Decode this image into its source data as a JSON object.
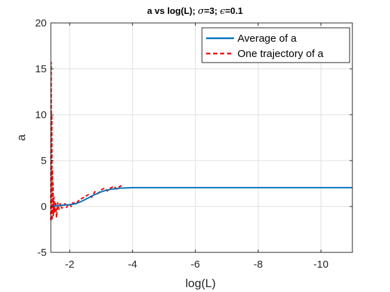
{
  "chart_data": {
    "type": "line",
    "title_parts": [
      "a vs log(L); ",
      "σ",
      "=3; ",
      "ϵ",
      "=0.1"
    ],
    "xlabel": "log(L)",
    "ylabel": "a",
    "xlim": [
      -1.4,
      -11
    ],
    "ylim": [
      -5,
      20
    ],
    "x_reversed": true,
    "xticks": [
      -2,
      -4,
      -6,
      -8,
      -10
    ],
    "xtick_labels": [
      "-2",
      "-4",
      "-6",
      "-8",
      "-10"
    ],
    "yticks": [
      -5,
      0,
      5,
      10,
      15,
      20
    ],
    "ytick_labels": [
      "-5",
      "0",
      "5",
      "10",
      "15",
      "20"
    ],
    "grid": true,
    "legend_position": "top-right",
    "series": [
      {
        "name": "Average of a",
        "style": "solid",
        "color": "#0072bd",
        "x": [
          -1.45,
          -1.5,
          -1.6,
          -1.8,
          -2.0,
          -2.2,
          -2.4,
          -2.6,
          -2.8,
          -3.0,
          -3.2,
          -3.4,
          -3.6,
          -3.8,
          -4.0,
          -4.5,
          -5.0,
          -6.0,
          -7.0,
          -8.0,
          -9.0,
          -10.0,
          -11.0
        ],
        "y": [
          0.0,
          0.05,
          0.1,
          0.15,
          0.2,
          0.3,
          0.6,
          0.95,
          1.3,
          1.6,
          1.8,
          1.92,
          2.0,
          2.02,
          2.05,
          2.05,
          2.05,
          2.05,
          2.05,
          2.05,
          2.05,
          2.05,
          2.05
        ]
      },
      {
        "name": "One trajectory of a",
        "style": "dashed",
        "color": "#ff0000",
        "x": [
          -1.4,
          -1.41,
          -1.42,
          -1.43,
          -1.44,
          -1.45,
          -1.46,
          -1.47,
          -1.48,
          -1.5,
          -1.52,
          -1.55,
          -1.58,
          -1.62,
          -1.66,
          -1.7,
          -1.75,
          -1.8,
          -1.85,
          -1.9,
          -1.95,
          -2.0,
          -2.05,
          -2.1,
          -2.2,
          -2.3,
          -2.4,
          -2.5,
          -2.6,
          -2.7,
          -2.8,
          -2.9,
          -3.0,
          -3.1,
          -3.2,
          -3.3,
          -3.4,
          -3.5,
          -3.6,
          -3.7
        ],
        "y": [
          -1.5,
          15.7,
          3.0,
          10.0,
          -1.5,
          4.0,
          -0.8,
          2.5,
          -1.0,
          1.0,
          -0.6,
          0.5,
          -1.2,
          0.4,
          -0.3,
          0.3,
          -0.2,
          0.1,
          0.3,
          -0.1,
          0.2,
          0.25,
          0.0,
          0.4,
          0.3,
          0.7,
          0.9,
          1.1,
          1.3,
          1.0,
          1.6,
          1.4,
          1.8,
          2.0,
          1.7,
          2.0,
          2.2,
          1.9,
          2.2,
          2.3
        ]
      }
    ]
  }
}
